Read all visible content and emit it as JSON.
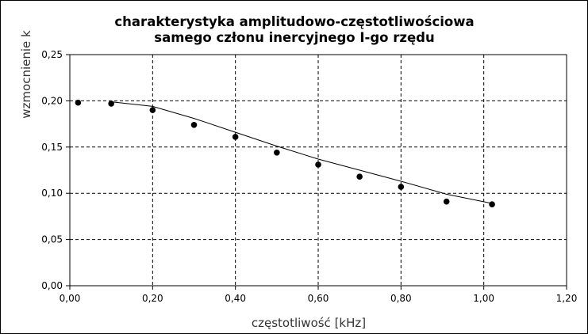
{
  "chart_data": {
    "type": "scatter",
    "title": [
      "charakterystyka amplitudowo-częstotliwościowa",
      "samego członu inercyjnego I-go rzędu"
    ],
    "xlabel": "częstotliwość [kHz]",
    "ylabel": "wzmocnienie k",
    "xlim": [
      0,
      1.2
    ],
    "ylim": [
      0,
      0.25
    ],
    "x_ticks": [
      "0,00",
      "0,20",
      "0,40",
      "0,60",
      "0,80",
      "1,00",
      "1,20"
    ],
    "y_ticks": [
      "0,00",
      "0,05",
      "0,10",
      "0,15",
      "0,20",
      "0,25"
    ],
    "x_tick_values": [
      0,
      0.2,
      0.4,
      0.6,
      0.8,
      1.0,
      1.2
    ],
    "y_tick_values": [
      0,
      0.05,
      0.1,
      0.15,
      0.2,
      0.25
    ],
    "grid": true,
    "grid_style": "dashed",
    "series": [
      {
        "kind": "points",
        "color": "#000000",
        "x": [
          0.02,
          0.1,
          0.2,
          0.3,
          0.4,
          0.5,
          0.6,
          0.7,
          0.8,
          0.91,
          1.02
        ],
        "y": [
          0.198,
          0.197,
          0.19,
          0.174,
          0.161,
          0.144,
          0.131,
          0.118,
          0.107,
          0.091,
          0.088
        ]
      },
      {
        "kind": "line",
        "color": "#000000",
        "x": [
          0.1,
          0.2,
          0.3,
          0.4,
          0.5,
          0.6,
          0.7,
          0.8,
          0.91,
          1.02
        ],
        "y": [
          0.199,
          0.194,
          0.181,
          0.166,
          0.151,
          0.137,
          0.125,
          0.113,
          0.099,
          0.089
        ]
      }
    ]
  }
}
